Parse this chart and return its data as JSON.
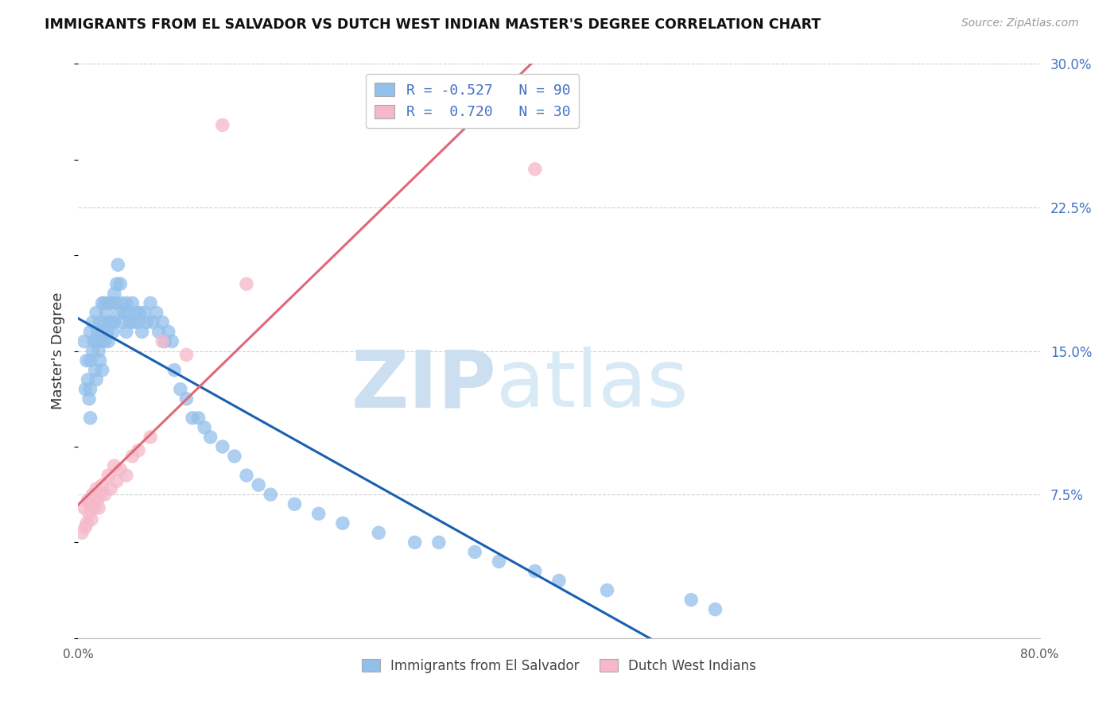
{
  "title": "IMMIGRANTS FROM EL SALVADOR VS DUTCH WEST INDIAN MASTER'S DEGREE CORRELATION CHART",
  "source": "Source: ZipAtlas.com",
  "legend_blue_label": "Immigrants from El Salvador",
  "legend_pink_label": "Dutch West Indians",
  "ylabel": "Master's Degree",
  "xlim": [
    0.0,
    0.8
  ],
  "ylim": [
    0.0,
    0.3
  ],
  "blue_R": "-0.527",
  "blue_N": "90",
  "pink_R": "0.720",
  "pink_N": "30",
  "blue_dot_color": "#93c0ea",
  "pink_dot_color": "#f5b8c8",
  "blue_line_color": "#1a5fb0",
  "pink_line_color": "#e06878",
  "ytick_vals": [
    0.075,
    0.15,
    0.225,
    0.3
  ],
  "ytick_labels": [
    "7.5%",
    "15.0%",
    "22.5%",
    "30.0%"
  ],
  "ytick_color": "#4472c4",
  "grid_color": "#d0d0d0",
  "title_fontsize": 12.5,
  "blue_scatter_x": [
    0.005,
    0.006,
    0.007,
    0.008,
    0.009,
    0.01,
    0.01,
    0.01,
    0.01,
    0.012,
    0.012,
    0.013,
    0.014,
    0.015,
    0.015,
    0.015,
    0.016,
    0.017,
    0.018,
    0.018,
    0.019,
    0.02,
    0.02,
    0.02,
    0.021,
    0.022,
    0.022,
    0.023,
    0.024,
    0.025,
    0.025,
    0.026,
    0.027,
    0.028,
    0.029,
    0.03,
    0.03,
    0.031,
    0.032,
    0.033,
    0.034,
    0.035,
    0.036,
    0.037,
    0.038,
    0.04,
    0.04,
    0.041,
    0.043,
    0.045,
    0.046,
    0.048,
    0.05,
    0.051,
    0.053,
    0.055,
    0.057,
    0.06,
    0.062,
    0.065,
    0.067,
    0.07,
    0.072,
    0.075,
    0.078,
    0.08,
    0.085,
    0.09,
    0.095,
    0.1,
    0.105,
    0.11,
    0.12,
    0.13,
    0.14,
    0.15,
    0.16,
    0.18,
    0.2,
    0.22,
    0.25,
    0.28,
    0.3,
    0.33,
    0.35,
    0.38,
    0.4,
    0.44,
    0.51,
    0.53
  ],
  "blue_scatter_y": [
    0.155,
    0.13,
    0.145,
    0.135,
    0.125,
    0.16,
    0.145,
    0.13,
    0.115,
    0.15,
    0.165,
    0.155,
    0.14,
    0.17,
    0.155,
    0.135,
    0.16,
    0.15,
    0.165,
    0.145,
    0.155,
    0.175,
    0.16,
    0.14,
    0.165,
    0.175,
    0.155,
    0.17,
    0.16,
    0.175,
    0.155,
    0.165,
    0.175,
    0.165,
    0.16,
    0.18,
    0.165,
    0.175,
    0.185,
    0.195,
    0.17,
    0.185,
    0.175,
    0.165,
    0.17,
    0.175,
    0.16,
    0.17,
    0.165,
    0.175,
    0.165,
    0.17,
    0.165,
    0.17,
    0.16,
    0.17,
    0.165,
    0.175,
    0.165,
    0.17,
    0.16,
    0.165,
    0.155,
    0.16,
    0.155,
    0.14,
    0.13,
    0.125,
    0.115,
    0.115,
    0.11,
    0.105,
    0.1,
    0.095,
    0.085,
    0.08,
    0.075,
    0.07,
    0.065,
    0.06,
    0.055,
    0.05,
    0.05,
    0.045,
    0.04,
    0.035,
    0.03,
    0.025,
    0.02,
    0.015
  ],
  "pink_scatter_x": [
    0.003,
    0.005,
    0.006,
    0.007,
    0.008,
    0.009,
    0.01,
    0.011,
    0.012,
    0.013,
    0.015,
    0.016,
    0.017,
    0.018,
    0.02,
    0.022,
    0.025,
    0.027,
    0.03,
    0.032,
    0.035,
    0.04,
    0.045,
    0.05,
    0.06,
    0.07,
    0.09,
    0.12,
    0.38,
    0.14
  ],
  "pink_scatter_y": [
    0.055,
    0.068,
    0.058,
    0.06,
    0.072,
    0.065,
    0.07,
    0.062,
    0.075,
    0.068,
    0.078,
    0.072,
    0.068,
    0.075,
    0.08,
    0.075,
    0.085,
    0.078,
    0.09,
    0.082,
    0.088,
    0.085,
    0.095,
    0.098,
    0.105,
    0.155,
    0.148,
    0.268,
    0.245,
    0.185
  ],
  "blue_line_x": [
    0.0,
    0.56
  ],
  "pink_line_x": [
    0.0,
    0.8
  ]
}
